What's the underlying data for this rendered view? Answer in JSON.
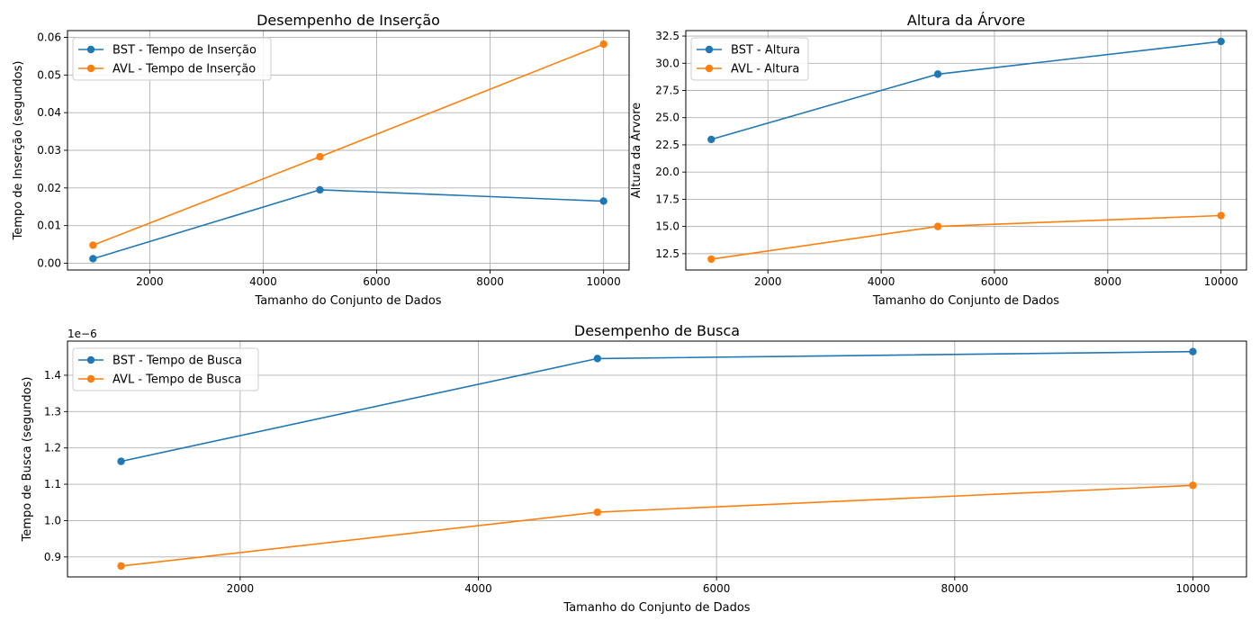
{
  "chart_data": [
    {
      "type": "line",
      "title": "Desempenho de Inserção",
      "xlabel": "Tamanho do Conjunto de Dados",
      "ylabel": "Tempo de Inserção (segundos)",
      "x": [
        1000,
        5000,
        10000
      ],
      "xlim": [
        550,
        10450
      ],
      "ylim": [
        -0.0018,
        0.0618
      ],
      "xticks": [
        2000,
        4000,
        6000,
        8000,
        10000
      ],
      "xtick_labels": [
        "2000",
        "4000",
        "6000",
        "8000",
        "10000"
      ],
      "yticks": [
        0,
        0.01,
        0.02,
        0.03,
        0.04,
        0.05,
        0.06
      ],
      "ytick_labels": [
        "0.00",
        "0.01",
        "0.02",
        "0.03",
        "0.04",
        "0.05",
        "0.06"
      ],
      "offset_text": "",
      "grid": true,
      "legend": "upper-left",
      "series": [
        {
          "name": "BST - Tempo de Inserção",
          "values": [
            0.0012,
            0.0195,
            0.0165
          ],
          "color": "#1f77b4"
        },
        {
          "name": "AVL - Tempo de Inserção",
          "values": [
            0.0048,
            0.0283,
            0.0582
          ],
          "color": "#ff7f0e"
        }
      ]
    },
    {
      "type": "line",
      "title": "Altura da Árvore",
      "xlabel": "Tamanho do Conjunto de Dados",
      "ylabel": "Altura da Árvore",
      "x": [
        1000,
        5000,
        10000
      ],
      "xlim": [
        550,
        10450
      ],
      "ylim": [
        11.0,
        33.0
      ],
      "xticks": [
        2000,
        4000,
        6000,
        8000,
        10000
      ],
      "xtick_labels": [
        "2000",
        "4000",
        "6000",
        "8000",
        "10000"
      ],
      "yticks": [
        12.5,
        15,
        17.5,
        20,
        22.5,
        25,
        27.5,
        30,
        32.5
      ],
      "ytick_labels": [
        "12.5",
        "15.0",
        "17.5",
        "20.0",
        "22.5",
        "25.0",
        "27.5",
        "30.0",
        "32.5"
      ],
      "offset_text": "",
      "grid": true,
      "legend": "upper-left",
      "series": [
        {
          "name": "BST - Altura",
          "values": [
            23,
            29,
            32
          ],
          "color": "#1f77b4"
        },
        {
          "name": "AVL - Altura",
          "values": [
            12,
            15,
            16
          ],
          "color": "#ff7f0e"
        }
      ]
    },
    {
      "type": "line",
      "title": "Desempenho de Busca",
      "xlabel": "Tamanho do Conjunto de Dados",
      "ylabel": "Tempo de Busca (segundos)",
      "x": [
        1000,
        5000,
        10000
      ],
      "xlim": [
        550,
        10450
      ],
      "ylim": [
        8.45e-07,
        1.494e-06
      ],
      "xticks": [
        2000,
        4000,
        6000,
        8000,
        10000
      ],
      "xtick_labels": [
        "2000",
        "4000",
        "6000",
        "8000",
        "10000"
      ],
      "yticks": [
        9e-07,
        1e-06,
        1.1e-06,
        1.2e-06,
        1.3e-06,
        1.4e-06
      ],
      "ytick_labels": [
        "0.9",
        "1.0",
        "1.1",
        "1.2",
        "1.3",
        "1.4"
      ],
      "offset_text": "1e−6",
      "grid": true,
      "legend": "upper-left",
      "series": [
        {
          "name": "BST - Tempo de Busca",
          "values": [
            1.163e-06,
            1.446e-06,
            1.465e-06
          ],
          "color": "#1f77b4"
        },
        {
          "name": "AVL - Tempo de Busca",
          "values": [
            8.75e-07,
            1.023e-06,
            1.097e-06
          ],
          "color": "#ff7f0e"
        }
      ]
    }
  ]
}
